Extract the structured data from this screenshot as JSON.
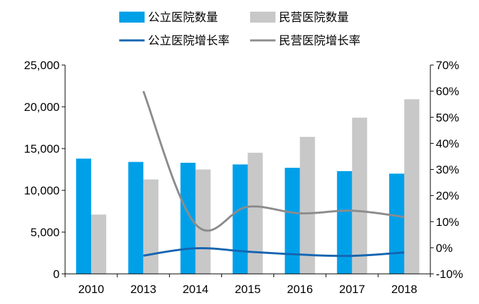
{
  "chart_data": {
    "type": "bar",
    "categories": [
      "2010",
      "2013",
      "2014",
      "2015",
      "2016",
      "2017",
      "2018"
    ],
    "bar_series": [
      {
        "name": "公立医院数量",
        "color": "#00a0e9",
        "values": [
          13800,
          13400,
          13300,
          13100,
          12700,
          12300,
          12000
        ]
      },
      {
        "name": "民营医院数量",
        "color": "#c8c8c8",
        "values": [
          7100,
          11300,
          12500,
          14500,
          16400,
          18700,
          20900
        ]
      }
    ],
    "line_series": [
      {
        "name": "公立医院增长率",
        "color": "#1565b0",
        "values": [
          null,
          -3.0,
          -0.2,
          -1.5,
          -2.6,
          -3.1,
          -1.8
        ]
      },
      {
        "name": "民营医院增长率",
        "color": "#8c8c8c",
        "values": [
          null,
          60.0,
          9.0,
          15.7,
          13.2,
          14.2,
          11.8
        ]
      }
    ],
    "y_left": {
      "min": 0,
      "max": 25000,
      "ticks": [
        "0",
        "5,000",
        "10,000",
        "15,000",
        "20,000",
        "25,000"
      ]
    },
    "y_right": {
      "min": -10,
      "max": 70,
      "ticks": [
        "-10%",
        "0%",
        "10%",
        "20%",
        "30%",
        "40%",
        "50%",
        "60%",
        "70%"
      ]
    },
    "title": "",
    "xlabel": "",
    "ylabel": "",
    "grid": false,
    "legend_position": "top"
  }
}
